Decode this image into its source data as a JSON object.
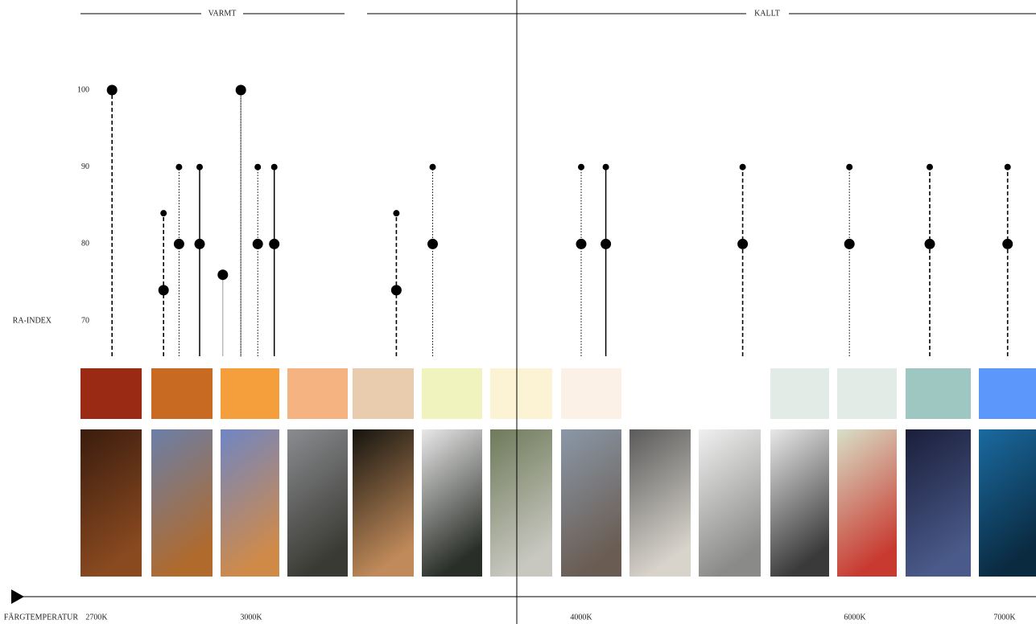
{
  "chart_data": {
    "type": "lollipop",
    "headers": [
      "VARMT",
      "KALLT"
    ],
    "ylabel": "RA-INDEX",
    "xlabel": "FÄRGTEMPERATUR",
    "ylim": [
      65,
      100
    ],
    "yticks": [
      70,
      80,
      90,
      100
    ],
    "xticks": [
      {
        "value": 2700,
        "label": "2700K"
      },
      {
        "value": 3000,
        "label": "3000K"
      },
      {
        "value": 4000,
        "label": "4000K"
      },
      {
        "value": 6000,
        "label": "6000K"
      },
      {
        "value": 7000,
        "label": "7000K"
      }
    ],
    "x": [
      2730,
      2830,
      2860,
      2900,
      2945,
      2980,
      3020,
      3070,
      3440,
      3550,
      4000,
      4180,
      5180,
      5960,
      6500,
      7020
    ],
    "series": [
      {
        "values": [
          null,
          84,
          90,
          90,
          null,
          null,
          90,
          90,
          84,
          90,
          90,
          90,
          90,
          90,
          90,
          90
        ]
      },
      {
        "values": [
          100,
          74,
          80,
          80,
          76,
          100,
          80,
          80,
          74,
          80,
          80,
          80,
          80,
          80,
          80,
          80
        ]
      }
    ],
    "line_styles": [
      "dashed",
      "dashed",
      "dotted",
      "solid",
      "gray",
      "dense",
      "dotted",
      "solid",
      "dashed",
      "dotted",
      "dotted",
      "solid",
      "dashed",
      "dotted",
      "dashed",
      "dashed"
    ],
    "swatch_colors": [
      "#9a2a14",
      "#c96a22",
      "#f59f3c",
      "#f5b381",
      "#e8ccad",
      "#f1f3bf",
      "#fbf3d3",
      "#fbf1e7",
      null,
      null,
      "#e3ebe7",
      "#e3ebe7",
      "#9ec7c1",
      "#5c97fb"
    ]
  }
}
